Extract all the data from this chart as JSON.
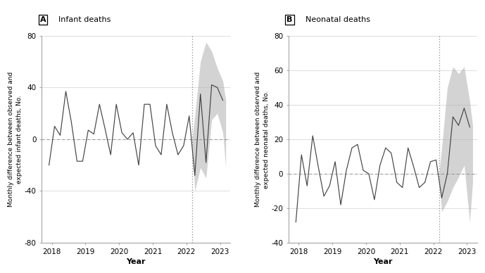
{
  "panel_A_title": "Infant deaths",
  "panel_B_title": "Neonatal deaths",
  "panel_A_label": "A",
  "panel_B_label": "B",
  "ylabel_A": "Monthly difference between observed and\nexpected infant deaths, No.",
  "ylabel_B": "Monthly difference between observed and\nexpected neonatal deaths, No.",
  "xlabel": "Year",
  "xlim": [
    2017.7,
    2023.3
  ],
  "ylim_A": [
    -80,
    80
  ],
  "ylim_B": [
    -40,
    80
  ],
  "yticks_A": [
    -80,
    -40,
    0,
    40,
    80
  ],
  "yticks_B": [
    -40,
    -20,
    0,
    20,
    40,
    60,
    80
  ],
  "xticks": [
    2018,
    2019,
    2020,
    2021,
    2022,
    2023
  ],
  "vline_x": 2022.17,
  "bg_color": "#ffffff",
  "line_color": "#444444",
  "ci_color": "#b0b0b0",
  "ci_alpha": 0.55,
  "infant_data": [
    [
      2017.917,
      -20
    ],
    [
      2018.083,
      10
    ],
    [
      2018.25,
      3
    ],
    [
      2018.417,
      37
    ],
    [
      2018.583,
      13
    ],
    [
      2018.75,
      -17
    ],
    [
      2018.917,
      -17
    ],
    [
      2019.083,
      7
    ],
    [
      2019.25,
      4
    ],
    [
      2019.417,
      27
    ],
    [
      2019.583,
      8
    ],
    [
      2019.75,
      -12
    ],
    [
      2019.917,
      27
    ],
    [
      2020.083,
      5
    ],
    [
      2020.25,
      0
    ],
    [
      2020.417,
      5
    ],
    [
      2020.583,
      -20
    ],
    [
      2020.75,
      27
    ],
    [
      2020.917,
      27
    ],
    [
      2021.083,
      -5
    ],
    [
      2021.25,
      -12
    ],
    [
      2021.417,
      27
    ],
    [
      2021.583,
      5
    ],
    [
      2021.75,
      -12
    ],
    [
      2021.917,
      -5
    ],
    [
      2022.083,
      18
    ],
    [
      2022.25,
      -28
    ],
    [
      2022.417,
      35
    ],
    [
      2022.583,
      -18
    ],
    [
      2022.75,
      42
    ],
    [
      2022.917,
      40
    ],
    [
      2023.083,
      30
    ]
  ],
  "infant_ci_x": [
    2022.17,
    2022.25,
    2022.417,
    2022.583,
    2022.75,
    2022.917,
    2023.083,
    2023.17
  ],
  "infant_ci_upper": [
    0,
    18,
    60,
    75,
    68,
    55,
    45,
    30
  ],
  "infant_ci_lower": [
    0,
    -40,
    -22,
    -30,
    15,
    20,
    5,
    -22
  ],
  "neonatal_data": [
    [
      2017.917,
      -28
    ],
    [
      2018.083,
      11
    ],
    [
      2018.25,
      -7
    ],
    [
      2018.417,
      22
    ],
    [
      2018.583,
      4
    ],
    [
      2018.75,
      -13
    ],
    [
      2018.917,
      -7
    ],
    [
      2019.083,
      7
    ],
    [
      2019.25,
      -18
    ],
    [
      2019.417,
      2
    ],
    [
      2019.583,
      15
    ],
    [
      2019.75,
      17
    ],
    [
      2019.917,
      2
    ],
    [
      2020.083,
      0
    ],
    [
      2020.25,
      -15
    ],
    [
      2020.417,
      5
    ],
    [
      2020.583,
      15
    ],
    [
      2020.75,
      12
    ],
    [
      2020.917,
      -5
    ],
    [
      2021.083,
      -8
    ],
    [
      2021.25,
      15
    ],
    [
      2021.417,
      4
    ],
    [
      2021.583,
      -8
    ],
    [
      2021.75,
      -5
    ],
    [
      2021.917,
      7
    ],
    [
      2022.083,
      8
    ],
    [
      2022.25,
      -14
    ],
    [
      2022.417,
      0
    ],
    [
      2022.583,
      33
    ],
    [
      2022.75,
      28
    ],
    [
      2022.917,
      38
    ],
    [
      2023.083,
      27
    ]
  ],
  "neonatal_ci_x": [
    2022.17,
    2022.25,
    2022.417,
    2022.583,
    2022.75,
    2022.917,
    2023.083,
    2023.17
  ],
  "neonatal_ci_upper": [
    0,
    15,
    50,
    62,
    58,
    62,
    42,
    28
  ],
  "neonatal_ci_lower": [
    0,
    -22,
    -16,
    -8,
    -2,
    5,
    -28,
    -5
  ]
}
